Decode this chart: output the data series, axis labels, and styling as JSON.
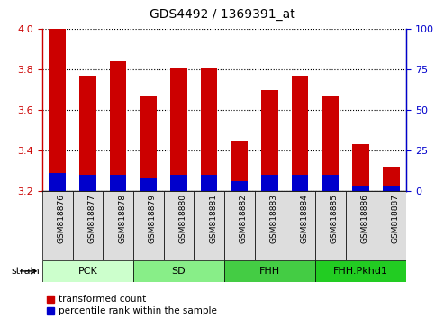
{
  "title": "GDS4492 / 1369391_at",
  "samples": [
    "GSM818876",
    "GSM818877",
    "GSM818878",
    "GSM818879",
    "GSM818880",
    "GSM818881",
    "GSM818882",
    "GSM818883",
    "GSM818884",
    "GSM818885",
    "GSM818886",
    "GSM818887"
  ],
  "red_values": [
    4.0,
    3.77,
    3.84,
    3.67,
    3.81,
    3.81,
    3.45,
    3.7,
    3.77,
    3.67,
    3.43,
    3.32
  ],
  "blue_values": [
    3.29,
    3.28,
    3.28,
    3.27,
    3.28,
    3.28,
    3.25,
    3.28,
    3.28,
    3.28,
    3.23,
    3.23
  ],
  "bar_bottom": 3.2,
  "ylim_left": [
    3.2,
    4.0
  ],
  "ylim_right": [
    0,
    100
  ],
  "yticks_left": [
    3.2,
    3.4,
    3.6,
    3.8,
    4.0
  ],
  "yticks_right": [
    0,
    25,
    50,
    75,
    100
  ],
  "red_color": "#cc0000",
  "blue_color": "#0000cc",
  "groups": [
    {
      "label": "PCK",
      "start": 0,
      "end": 3,
      "color": "#ccffcc"
    },
    {
      "label": "SD",
      "start": 3,
      "end": 6,
      "color": "#88ee88"
    },
    {
      "label": "FHH",
      "start": 6,
      "end": 9,
      "color": "#44cc44"
    },
    {
      "label": "FHH.Pkhd1",
      "start": 9,
      "end": 12,
      "color": "#22cc22"
    }
  ],
  "strain_label": "strain",
  "legend_red": "transformed count",
  "legend_blue": "percentile rank within the sample",
  "bar_width": 0.55,
  "tick_color_left": "#cc0000",
  "tick_color_right": "#0000cc",
  "bg_color_plot": "#ffffff",
  "bg_color_fig": "#ffffff",
  "xticklabel_bg": "#dddddd"
}
